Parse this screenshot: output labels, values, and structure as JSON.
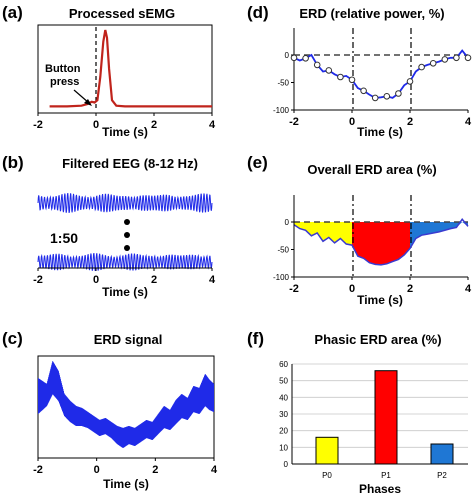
{
  "colors": {
    "emg": "#c0241c",
    "eeg": "#1f2ae8",
    "p0": "#ffff00",
    "p1": "#ff0000",
    "p2": "#1f77d4"
  },
  "chart_data": [
    {
      "id": "a",
      "type": "line",
      "letter": "(a)",
      "title": "Processed sEMG",
      "xlabel": "Time (s)",
      "x_ticks": [
        "-2",
        "0",
        "2",
        "4"
      ],
      "xlim": [
        -2,
        4
      ],
      "annotation": "Button press",
      "series": [
        {
          "values": [
            [
              -1.6,
              0.02
            ],
            [
              -1.0,
              0.02
            ],
            [
              -0.5,
              0.03
            ],
            [
              -0.3,
              0.05
            ],
            [
              -0.15,
              0.08
            ],
            [
              -0.05,
              0.07
            ],
            [
              0.05,
              0.1
            ],
            [
              0.15,
              0.4
            ],
            [
              0.25,
              0.85
            ],
            [
              0.32,
              1.0
            ],
            [
              0.38,
              0.9
            ],
            [
              0.45,
              0.5
            ],
            [
              0.55,
              0.1
            ],
            [
              0.7,
              0.03
            ],
            [
              1.0,
              0.02
            ],
            [
              2.0,
              0.02
            ],
            [
              4.0,
              0.02
            ]
          ]
        }
      ]
    },
    {
      "id": "b",
      "type": "line",
      "letter": "(b)",
      "title": "Filtered  EEG (8-12 Hz)",
      "xlabel": "Time (s)",
      "x_ticks": [
        "-2",
        "0",
        "2",
        "4"
      ],
      "xlim": [
        -2,
        4
      ],
      "note": "1:50"
    },
    {
      "id": "c",
      "type": "area",
      "letter": "(c)",
      "title": "ERD signal",
      "xlabel": "Time (s)",
      "x_ticks": [
        "-2",
        "0",
        "2",
        "4"
      ],
      "xlim": [
        -2,
        4
      ],
      "upper": [
        [
          -2,
          0.78
        ],
        [
          -1.7,
          0.72
        ],
        [
          -1.5,
          0.95
        ],
        [
          -1.3,
          0.85
        ],
        [
          -1.1,
          0.62
        ],
        [
          -0.9,
          0.55
        ],
        [
          -0.7,
          0.5
        ],
        [
          -0.5,
          0.48
        ],
        [
          -0.3,
          0.44
        ],
        [
          -0.1,
          0.4
        ],
        [
          0.1,
          0.36
        ],
        [
          0.3,
          0.38
        ],
        [
          0.5,
          0.34
        ],
        [
          0.7,
          0.3
        ],
        [
          0.9,
          0.28
        ],
        [
          1.1,
          0.3
        ],
        [
          1.3,
          0.28
        ],
        [
          1.5,
          0.32
        ],
        [
          1.7,
          0.36
        ],
        [
          1.9,
          0.34
        ],
        [
          2.1,
          0.42
        ],
        [
          2.3,
          0.5
        ],
        [
          2.5,
          0.46
        ],
        [
          2.7,
          0.56
        ],
        [
          2.9,
          0.62
        ],
        [
          3.1,
          0.58
        ],
        [
          3.3,
          0.7
        ],
        [
          3.5,
          0.68
        ],
        [
          3.7,
          0.82
        ],
        [
          3.85,
          0.76
        ],
        [
          4.0,
          0.72
        ]
      ],
      "lower": [
        [
          -2,
          0.42
        ],
        [
          -1.7,
          0.5
        ],
        [
          -1.5,
          0.62
        ],
        [
          -1.3,
          0.55
        ],
        [
          -1.1,
          0.4
        ],
        [
          -0.9,
          0.34
        ],
        [
          -0.7,
          0.3
        ],
        [
          -0.5,
          0.3
        ],
        [
          -0.3,
          0.28
        ],
        [
          -0.1,
          0.24
        ],
        [
          0.1,
          0.2
        ],
        [
          0.3,
          0.22
        ],
        [
          0.5,
          0.18
        ],
        [
          0.7,
          0.12
        ],
        [
          0.9,
          0.08
        ],
        [
          1.1,
          0.12
        ],
        [
          1.3,
          0.1
        ],
        [
          1.5,
          0.14
        ],
        [
          1.7,
          0.18
        ],
        [
          1.9,
          0.16
        ],
        [
          2.1,
          0.22
        ],
        [
          2.3,
          0.28
        ],
        [
          2.5,
          0.26
        ],
        [
          2.7,
          0.32
        ],
        [
          2.9,
          0.38
        ],
        [
          3.1,
          0.36
        ],
        [
          3.3,
          0.44
        ],
        [
          3.5,
          0.42
        ],
        [
          3.7,
          0.5
        ],
        [
          3.85,
          0.46
        ],
        [
          4.0,
          0.44
        ]
      ]
    },
    {
      "id": "d",
      "type": "line",
      "letter": "(d)",
      "title": "ERD (relative power, %)",
      "xlabel": "Time (s)",
      "x_ticks": [
        "-2",
        "0",
        "2",
        "4"
      ],
      "y_ticks": [
        "0",
        "-50",
        "-100"
      ],
      "xlim": [
        -2,
        4
      ],
      "ylim": [
        -100,
        15
      ],
      "series": [
        {
          "values": [
            [
              -2.0,
              -5
            ],
            [
              -1.8,
              -10
            ],
            [
              -1.6,
              -6
            ],
            [
              -1.4,
              0
            ],
            [
              -1.2,
              -18
            ],
            [
              -1.0,
              -30
            ],
            [
              -0.8,
              -28
            ],
            [
              -0.6,
              -35
            ],
            [
              -0.4,
              -40
            ],
            [
              -0.2,
              -38
            ],
            [
              0.0,
              -45
            ],
            [
              0.2,
              -60
            ],
            [
              0.4,
              -65
            ],
            [
              0.6,
              -72
            ],
            [
              0.8,
              -78
            ],
            [
              1.0,
              -77
            ],
            [
              1.2,
              -75
            ],
            [
              1.4,
              -78
            ],
            [
              1.6,
              -70
            ],
            [
              1.8,
              -55
            ],
            [
              2.0,
              -48
            ],
            [
              2.2,
              -30
            ],
            [
              2.4,
              -22
            ],
            [
              2.6,
              -18
            ],
            [
              2.8,
              -15
            ],
            [
              3.0,
              -12
            ],
            [
              3.2,
              -8
            ],
            [
              3.4,
              -5
            ],
            [
              3.6,
              -5
            ],
            [
              3.8,
              8
            ],
            [
              4.0,
              -5
            ]
          ]
        }
      ]
    },
    {
      "id": "e",
      "type": "area",
      "letter": "(e)",
      "title": "Overall ERD area (%)",
      "xlabel": "Time (s)",
      "x_ticks": [
        "-2",
        "0",
        "2",
        "4"
      ],
      "y_ticks": [
        "0",
        "-50",
        "-100"
      ],
      "xlim": [
        -2,
        4
      ],
      "ylim": [
        -100,
        15
      ],
      "series": [
        {
          "values": [
            [
              -2.0,
              -5
            ],
            [
              -1.8,
              -12
            ],
            [
              -1.6,
              -15
            ],
            [
              -1.4,
              -25
            ],
            [
              -1.2,
              -20
            ],
            [
              -1.0,
              -35
            ],
            [
              -0.8,
              -28
            ],
            [
              -0.6,
              -38
            ],
            [
              -0.4,
              -30
            ],
            [
              -0.2,
              -40
            ],
            [
              0.0,
              -42
            ],
            [
              0.2,
              -62
            ],
            [
              0.4,
              -66
            ],
            [
              0.6,
              -74
            ],
            [
              0.8,
              -77
            ],
            [
              1.0,
              -78
            ],
            [
              1.2,
              -76
            ],
            [
              1.4,
              -72
            ],
            [
              1.6,
              -68
            ],
            [
              1.8,
              -60
            ],
            [
              2.0,
              -48
            ],
            [
              2.2,
              -30
            ],
            [
              2.4,
              -24
            ],
            [
              2.6,
              -22
            ],
            [
              2.8,
              -20
            ],
            [
              3.0,
              -18
            ],
            [
              3.2,
              -15
            ],
            [
              3.4,
              -12
            ],
            [
              3.6,
              -10
            ],
            [
              3.8,
              5
            ],
            [
              4.0,
              -8
            ]
          ]
        }
      ]
    },
    {
      "id": "f",
      "type": "bar",
      "letter": "(f)",
      "title": "Phasic ERD area (%)",
      "xlabel": "Phases",
      "categories": [
        "P0",
        "P1",
        "P2"
      ],
      "values": [
        16,
        56,
        12
      ],
      "y_ticks": [
        "0",
        "10",
        "20",
        "30",
        "40",
        "50",
        "60"
      ],
      "ylim": [
        0,
        60
      ]
    }
  ]
}
